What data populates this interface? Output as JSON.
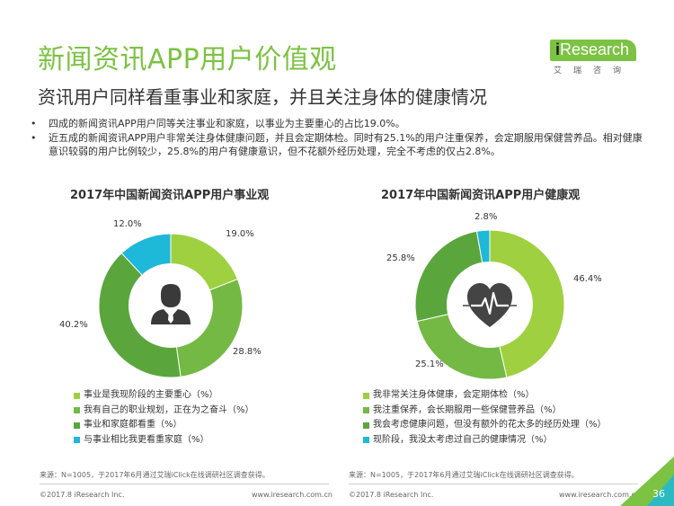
{
  "header": {
    "title": "新闻资讯APP用户价值观",
    "subtitle": "资讯用户同样看重事业和家庭，并且关注身体的健康情况",
    "logo_text_i": "i",
    "logo_text_rest": "Research",
    "logo_cn": "艾瑞咨询"
  },
  "bullets": [
    "四成的新闻资讯APP用户同等关注事业和家庭，以事业为主要重心的占比19.0%。",
    "近五成的新闻资讯APP用户非常关注身体健康问题，并且会定期体检。同时有25.1%的用户注重保养，会定期服用保健营养品。相对健康意识较弱的用户比例较少，25.8%的用户有健康意识，但不花额外经历处理，完全不考虑的仅占2.8%。"
  ],
  "chart_data": [
    {
      "type": "pie",
      "title": "2017年中国新闻资讯APP用户事业观",
      "labels": [
        "事业是我现阶段的主要重心（%）",
        "我有自己的职业规划，正在为之奋斗（%）",
        "事业和家庭都看重（%）",
        "与事业相比我更看重家庭（%）"
      ],
      "values": [
        19.0,
        28.8,
        40.2,
        12.0
      ],
      "value_labels": [
        "19.0%",
        "28.8%",
        "40.2%",
        "12.0%"
      ],
      "colors": [
        "#9ed040",
        "#74b944",
        "#5aa63d",
        "#1eb8d8"
      ],
      "legend_position": "bottom",
      "center_icon": "businessman-icon"
    },
    {
      "type": "pie",
      "title": "2017年中国新闻资讯APP用户健康观",
      "labels": [
        "我非常关注身体健康，会定期体检（%）",
        "我注重保养，会长期服用一些保健营养品（%）",
        "我会考虑健康问题，但没有额外的花太多的经历处理（%）",
        "现阶段，我没太考虑过自己的健康情况（%）"
      ],
      "values": [
        46.4,
        25.1,
        25.8,
        2.8
      ],
      "value_labels": [
        "46.4%",
        "25.1%",
        "25.8%",
        "2.8%"
      ],
      "colors": [
        "#9ed040",
        "#74b944",
        "#5aa63d",
        "#1eb8d8"
      ],
      "legend_position": "bottom",
      "center_icon": "heart-pulse-icon"
    }
  ],
  "sources": {
    "left": "来源：N=1005，于2017年6月通过艾瑞iClick在线调研社区调查获得。",
    "right": "来源：N=1005，于2017年6月通过艾瑞iClick在线调研社区调查获得。"
  },
  "footer": {
    "copyright_left": "©2017.8 iResearch Inc.",
    "url_left": "www.iresearch.com.cn",
    "copyright_right": "©2017.8 iResearch Inc.",
    "url_right": "www.iresearch.com.cn",
    "page_number": "36"
  }
}
